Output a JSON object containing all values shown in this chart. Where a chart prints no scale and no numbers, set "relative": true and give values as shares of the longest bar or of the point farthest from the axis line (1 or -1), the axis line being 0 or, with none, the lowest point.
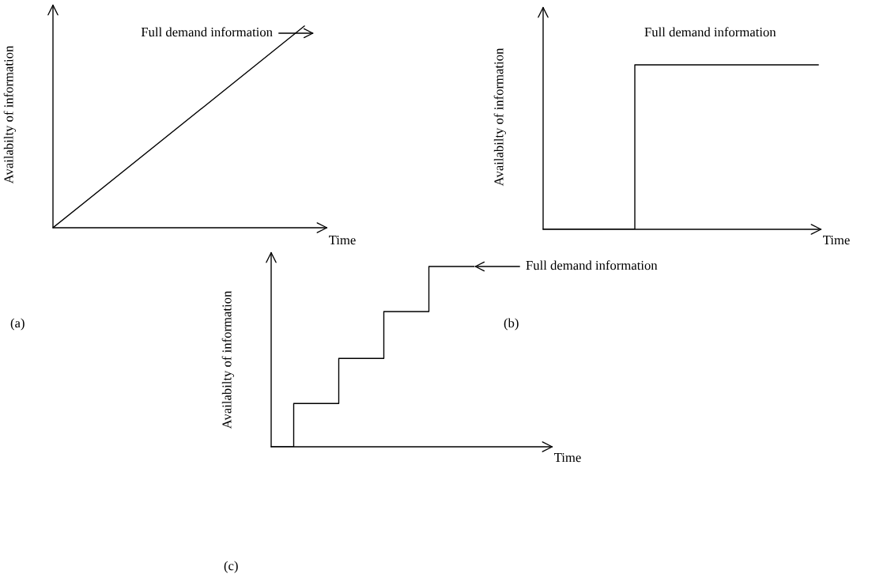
{
  "chart_data": [
    {
      "type": "line",
      "relative": true,
      "xlabel": "Time",
      "ylabel": "Availabilty of information",
      "categories": [
        null,
        null
      ],
      "values": [
        0,
        1
      ],
      "color": "#000000",
      "annotations": [
        "Full demand information",
        "(a)"
      ]
    },
    {
      "type": "step",
      "relative": true,
      "xlabel": "Time",
      "ylabel": "Availabilty of information",
      "categories": [
        null,
        null,
        null,
        null
      ],
      "values": [
        0,
        1,
        1,
        1
      ],
      "color": "#000000",
      "annotations": [
        "Full demand information",
        "(b)"
      ]
    },
    {
      "type": "step",
      "relative": true,
      "xlabel": "Time",
      "ylabel": "Availabilty of information",
      "categories": [
        null,
        null,
        null,
        null,
        null,
        null,
        null,
        null,
        null,
        null
      ],
      "values": [
        0,
        0.24,
        0.24,
        0.49,
        0.49,
        0.75,
        0.75,
        1,
        1,
        1
      ],
      "color": "#000000",
      "annotations": [
        "Full demand information",
        "(c)"
      ]
    }
  ]
}
